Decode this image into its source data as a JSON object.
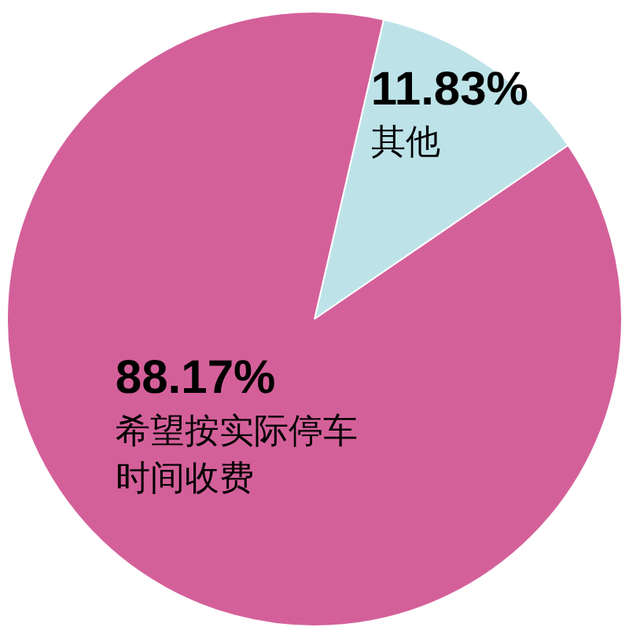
{
  "chart_data": {
    "type": "pie",
    "categories": [
      "其他",
      "希望按实际停车时间收费"
    ],
    "values": [
      11.83,
      88.17
    ],
    "colors": [
      "#bde3e8",
      "#d4609a"
    ],
    "value_labels": [
      "11.83%",
      "88.17%"
    ],
    "legend": false
  }
}
